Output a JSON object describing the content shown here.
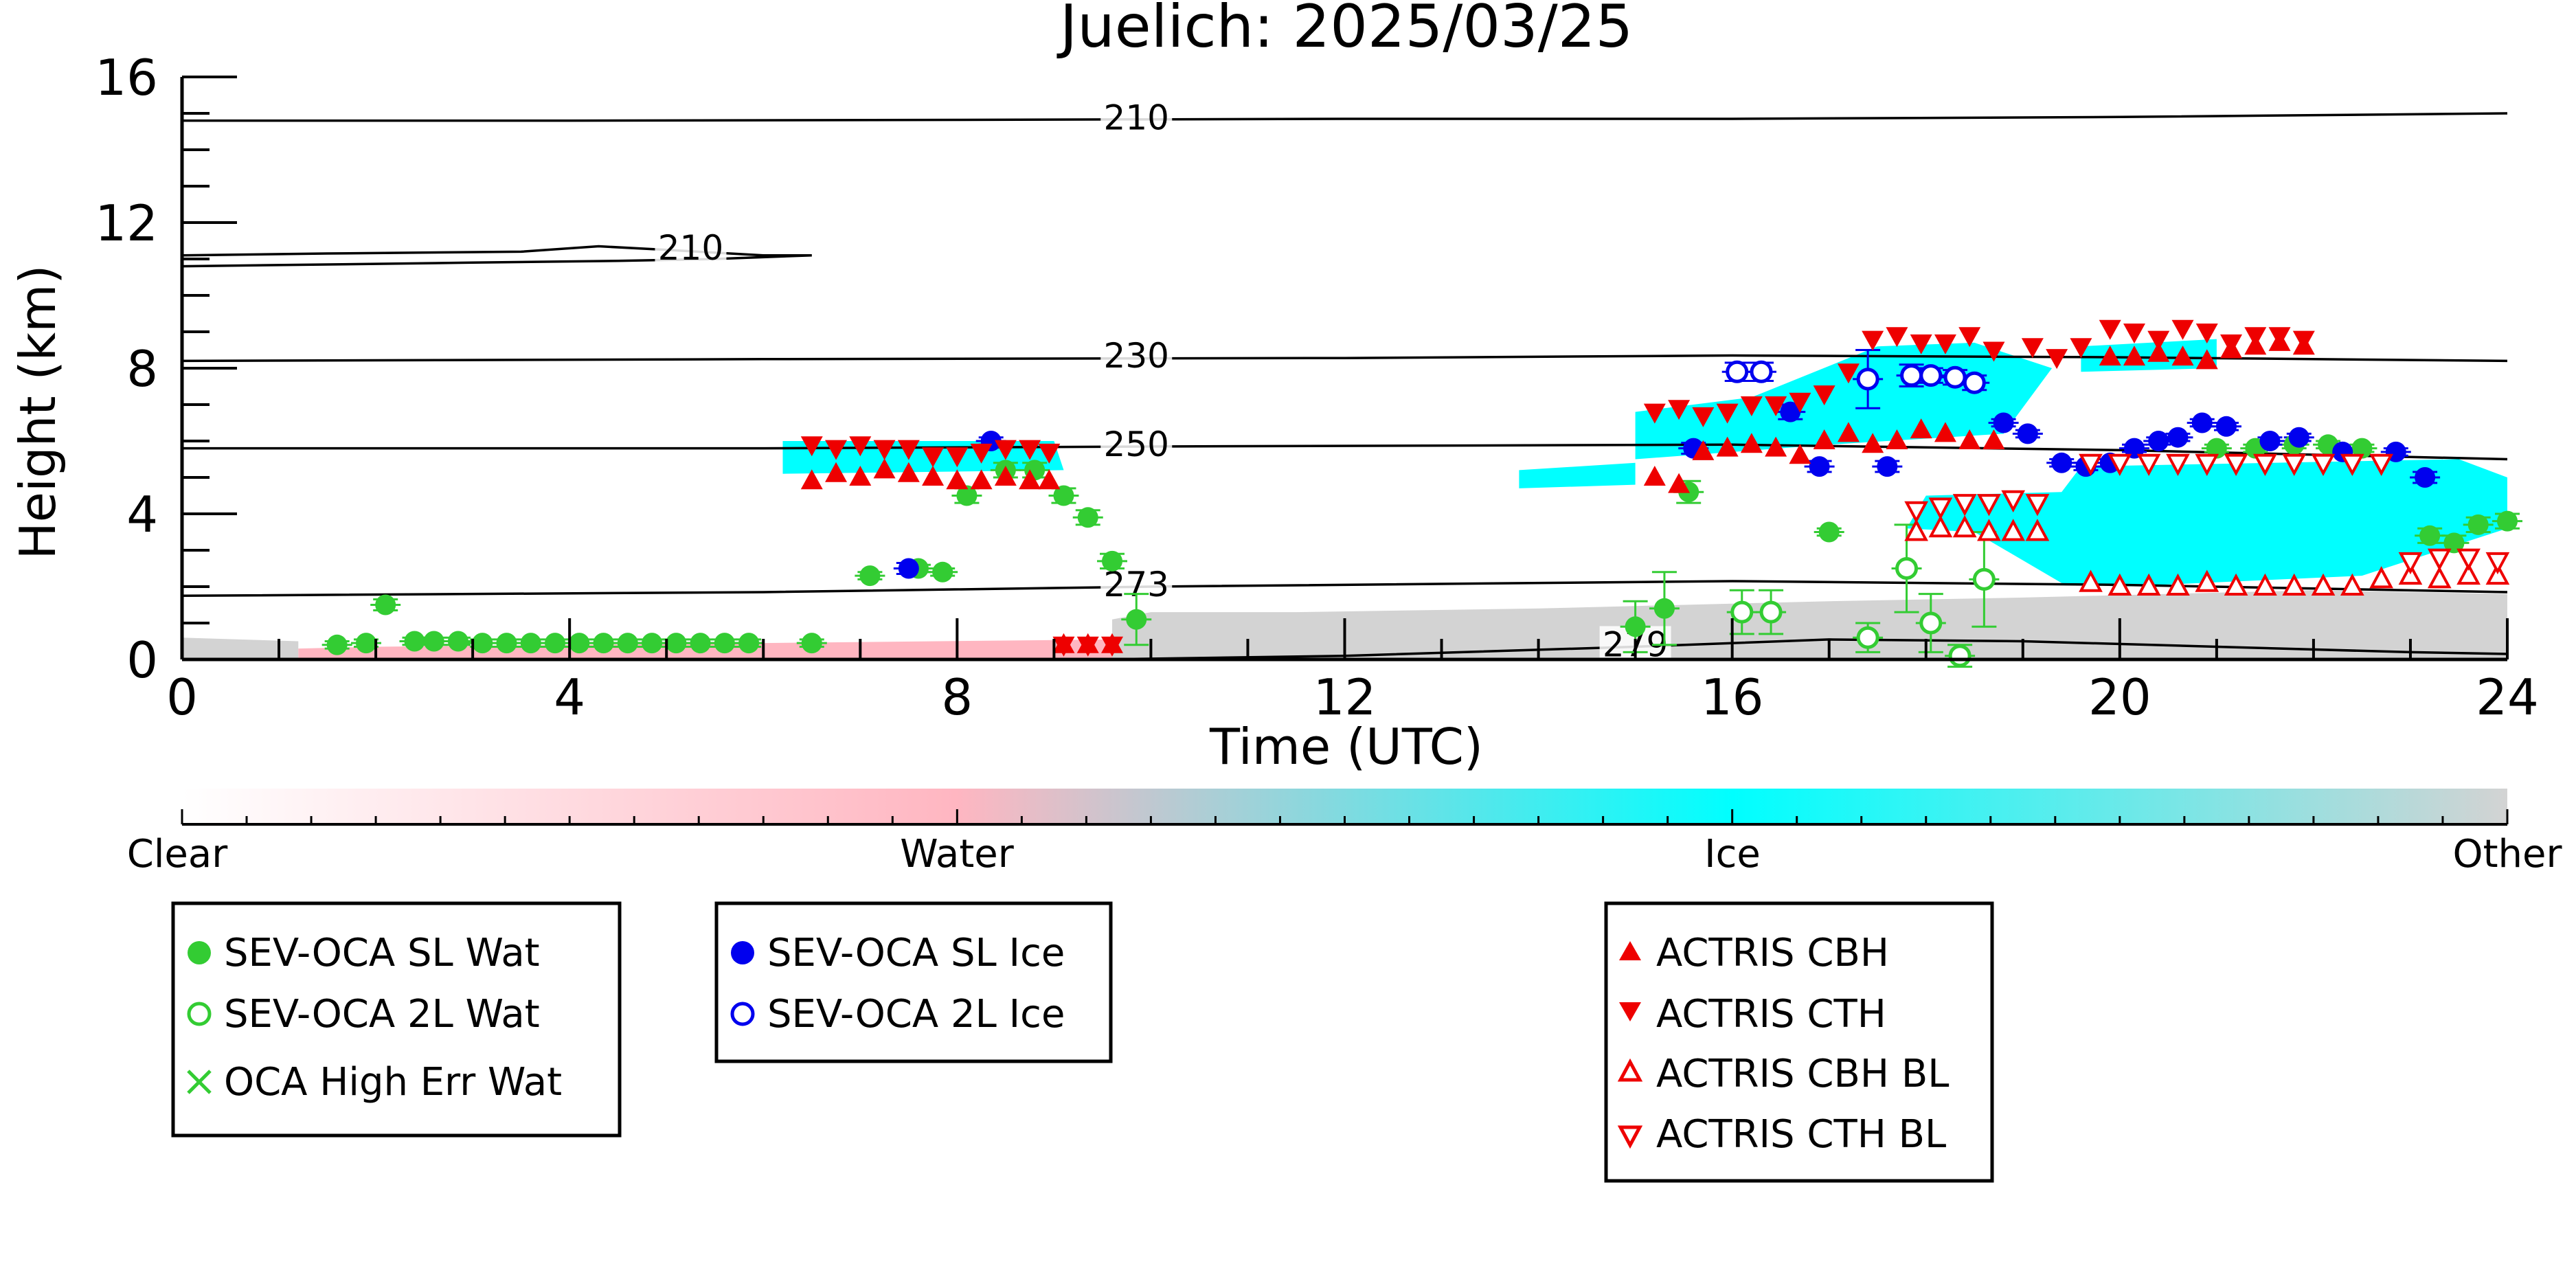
{
  "chart_data": {
    "type": "scatter",
    "title": "Juelich: 2025/03/25",
    "xlabel": "Time (UTC)",
    "ylabel": "Height (km)",
    "xlim": [
      0,
      24
    ],
    "ylim": [
      0,
      16
    ],
    "xticks": [
      0,
      4,
      8,
      12,
      16,
      20,
      24
    ],
    "yticks": [
      0,
      4,
      8,
      12,
      16
    ],
    "contours": [
      {
        "label": "210",
        "label_x": 9.85,
        "points": [
          [
            0,
            14.8
          ],
          [
            4,
            14.8
          ],
          [
            8,
            14.82
          ],
          [
            12,
            14.85
          ],
          [
            16,
            14.85
          ],
          [
            20,
            14.9
          ],
          [
            24,
            15.0
          ]
        ]
      },
      {
        "label": "210",
        "label_x": 5.25,
        "points": [
          [
            0,
            11.1
          ],
          [
            1.5,
            11.15
          ],
          [
            3.5,
            11.2
          ],
          [
            4.3,
            11.35
          ],
          [
            5.0,
            11.25
          ],
          [
            6.0,
            11.1
          ],
          [
            6.5,
            11.1
          ],
          [
            5.5,
            11.0
          ],
          [
            4.5,
            10.95
          ],
          [
            3.0,
            10.9
          ],
          [
            1.5,
            10.85
          ],
          [
            0,
            10.8
          ]
        ]
      },
      {
        "label": "230",
        "label_x": 9.85,
        "points": [
          [
            0,
            8.2
          ],
          [
            6,
            8.25
          ],
          [
            12,
            8.28
          ],
          [
            16,
            8.35
          ],
          [
            20,
            8.3
          ],
          [
            24,
            8.2
          ]
        ]
      },
      {
        "label": "250",
        "label_x": 9.85,
        "points": [
          [
            0,
            5.8
          ],
          [
            6,
            5.8
          ],
          [
            10,
            5.85
          ],
          [
            16,
            5.9
          ],
          [
            20,
            5.75
          ],
          [
            24,
            5.5
          ]
        ]
      },
      {
        "label": "273",
        "label_x": 9.85,
        "points": [
          [
            0,
            1.75
          ],
          [
            6,
            1.85
          ],
          [
            10,
            2.0
          ],
          [
            16,
            2.15
          ],
          [
            20,
            2.05
          ],
          [
            24,
            1.85
          ]
        ]
      },
      {
        "label": "279",
        "label_x": 15.0,
        "points": [
          [
            9.5,
            0.0
          ],
          [
            12,
            0.1
          ],
          [
            15,
            0.35
          ],
          [
            17,
            0.55
          ],
          [
            19,
            0.5
          ],
          [
            21,
            0.35
          ],
          [
            23,
            0.2
          ],
          [
            24,
            0.15
          ]
        ]
      }
    ],
    "classification_regions": [
      {
        "class": "Ice",
        "polygon": [
          [
            6.2,
            6.0
          ],
          [
            9.0,
            6.0
          ],
          [
            9.1,
            5.2
          ],
          [
            6.2,
            5.1
          ]
        ]
      },
      {
        "class": "Ice",
        "polygon": [
          [
            15.0,
            6.8
          ],
          [
            16.2,
            7.2
          ],
          [
            17.5,
            8.6
          ],
          [
            18.5,
            8.7
          ],
          [
            19.3,
            8.0
          ],
          [
            18.8,
            6.2
          ],
          [
            17.0,
            5.9
          ],
          [
            15.0,
            5.5
          ]
        ]
      },
      {
        "class": "Ice",
        "polygon": [
          [
            19.6,
            8.6
          ],
          [
            21.0,
            8.8
          ],
          [
            21.0,
            8.0
          ],
          [
            19.6,
            7.9
          ]
        ]
      },
      {
        "class": "Ice",
        "polygon": [
          [
            18.0,
            4.5
          ],
          [
            19.4,
            4.6
          ],
          [
            19.6,
            5.3
          ],
          [
            23.5,
            5.5
          ],
          [
            24.0,
            5.0
          ],
          [
            24.0,
            3.6
          ],
          [
            22.5,
            2.3
          ],
          [
            20.0,
            2.0
          ],
          [
            19.4,
            2.1
          ],
          [
            18.5,
            3.5
          ],
          [
            17.8,
            3.6
          ]
        ]
      },
      {
        "class": "Ice",
        "polygon": [
          [
            13.8,
            5.2
          ],
          [
            15.0,
            5.4
          ],
          [
            15.0,
            4.8
          ],
          [
            13.8,
            4.7
          ]
        ]
      },
      {
        "class": "Other",
        "polygon": [
          [
            9.6,
            0.0
          ],
          [
            24.0,
            0.0
          ],
          [
            24.0,
            1.8
          ],
          [
            22.0,
            1.9
          ],
          [
            19.0,
            1.7
          ],
          [
            17.0,
            1.6
          ],
          [
            14.0,
            1.4
          ],
          [
            11.5,
            1.3
          ],
          [
            10.0,
            1.3
          ],
          [
            9.6,
            1.1
          ]
        ]
      },
      {
        "class": "Other",
        "polygon": [
          [
            0.0,
            0.0
          ],
          [
            1.2,
            0.0
          ],
          [
            1.2,
            0.5
          ],
          [
            0.0,
            0.6
          ]
        ]
      },
      {
        "class": "Water",
        "polygon": [
          [
            1.2,
            0.0
          ],
          [
            9.6,
            0.0
          ],
          [
            9.6,
            0.55
          ],
          [
            6.0,
            0.45
          ],
          [
            2.0,
            0.35
          ],
          [
            1.2,
            0.3
          ]
        ]
      }
    ],
    "series": [
      {
        "name": "SEV-OCA SL Wat",
        "marker": "filled-circle",
        "color": "#33cc33",
        "x": [
          1.6,
          1.9,
          2.1,
          2.4,
          2.6,
          2.85,
          3.1,
          3.35,
          3.6,
          3.85,
          4.1,
          4.35,
          4.6,
          4.85,
          5.1,
          5.35,
          5.6,
          5.85,
          6.5,
          7.1,
          7.6,
          7.85,
          8.1,
          8.5,
          8.8,
          9.1,
          9.35,
          9.6,
          9.85,
          15.0,
          15.3,
          15.55,
          17.0,
          21.0,
          21.4,
          21.8,
          22.15,
          22.5,
          23.2,
          23.45,
          23.7,
          24.0
        ],
        "y": [
          0.4,
          0.45,
          1.5,
          0.5,
          0.5,
          0.5,
          0.45,
          0.45,
          0.45,
          0.45,
          0.45,
          0.45,
          0.45,
          0.45,
          0.45,
          0.45,
          0.45,
          0.45,
          0.45,
          2.3,
          2.5,
          2.4,
          4.5,
          5.2,
          5.2,
          4.5,
          3.9,
          2.7,
          1.1,
          0.9,
          1.4,
          4.6,
          3.5,
          5.8,
          5.8,
          5.9,
          5.9,
          5.8,
          3.4,
          3.2,
          3.7,
          3.8
        ],
        "err": [
          0.1,
          0.1,
          0.15,
          0.1,
          0.1,
          0.1,
          0.1,
          0.1,
          0.1,
          0.1,
          0.1,
          0.1,
          0.1,
          0.1,
          0.1,
          0.1,
          0.1,
          0.1,
          0.1,
          0.1,
          0.1,
          0.1,
          0.2,
          0.2,
          0.2,
          0.2,
          0.2,
          0.2,
          0.7,
          0.7,
          1.0,
          0.3,
          0.1,
          0.1,
          0.1,
          0.1,
          0.1,
          0.1,
          0.2,
          0.2,
          0.2,
          0.2
        ]
      },
      {
        "name": "SEV-OCA 2L Wat",
        "marker": "open-circle",
        "color": "#33cc33",
        "x": [
          16.1,
          16.4,
          17.4,
          17.8,
          18.05,
          18.35,
          18.6
        ],
        "y": [
          1.3,
          1.3,
          0.6,
          2.5,
          1.0,
          0.1,
          2.2
        ],
        "err": [
          0.6,
          0.6,
          0.4,
          1.2,
          0.8,
          0.3,
          1.3
        ]
      },
      {
        "name": "OCA High Err Wat",
        "marker": "cross",
        "color": "#33cc33",
        "x": [],
        "y": []
      },
      {
        "name": "SEV-OCA SL Ice",
        "marker": "filled-circle",
        "color": "#0000ee",
        "x": [
          7.5,
          8.35,
          15.6,
          16.6,
          16.9,
          17.6,
          18.8,
          19.05,
          19.4,
          19.65,
          19.9,
          20.15,
          20.4,
          20.6,
          20.85,
          21.1,
          21.55,
          21.85,
          22.3,
          22.85,
          23.15
        ],
        "y": [
          2.5,
          6.0,
          5.8,
          6.8,
          5.3,
          5.3,
          6.5,
          6.2,
          5.4,
          5.3,
          5.4,
          5.8,
          6.0,
          6.1,
          6.5,
          6.4,
          6.0,
          6.1,
          5.7,
          5.7,
          5.0
        ],
        "err": [
          0.15,
          0.1,
          0.15,
          0.2,
          0.15,
          0.15,
          0.1,
          0.1,
          0.1,
          0.1,
          0.1,
          0.1,
          0.1,
          0.1,
          0.1,
          0.1,
          0.1,
          0.1,
          0.1,
          0.1,
          0.15
        ]
      },
      {
        "name": "SEV-OCA 2L Ice",
        "marker": "open-circle",
        "color": "#0000ee",
        "x": [
          16.05,
          16.3,
          17.4,
          17.85,
          18.05,
          18.3,
          18.5
        ],
        "y": [
          7.9,
          7.9,
          7.7,
          7.8,
          7.8,
          7.75,
          7.6
        ],
        "err": [
          0.25,
          0.25,
          0.8,
          0.3,
          0.2,
          0.2,
          0.2
        ]
      },
      {
        "name": "ACTRIS CBH",
        "marker": "triangle-up-filled",
        "color": "#ee0000",
        "x": [
          6.5,
          6.75,
          7.0,
          7.25,
          7.5,
          7.75,
          8.0,
          8.25,
          8.5,
          8.75,
          8.95,
          9.1,
          9.35,
          9.6,
          15.2,
          15.45,
          15.7,
          15.95,
          16.2,
          16.45,
          16.7,
          16.95,
          17.2,
          17.45,
          17.7,
          17.95,
          18.2,
          18.45,
          18.7,
          19.9,
          20.15,
          20.4,
          20.65,
          20.9,
          21.15,
          21.4,
          21.65,
          21.9
        ],
        "y": [
          4.9,
          5.1,
          5.0,
          5.2,
          5.1,
          5.0,
          4.9,
          4.9,
          5.0,
          4.9,
          4.9,
          0.4,
          0.4,
          0.4,
          5.0,
          4.8,
          5.7,
          5.8,
          5.9,
          5.8,
          5.6,
          6.0,
          6.2,
          5.9,
          6.0,
          6.3,
          6.2,
          6.0,
          6.0,
          8.3,
          8.3,
          8.4,
          8.3,
          8.2,
          8.5,
          8.6,
          8.7,
          8.6
        ],
        "err": []
      },
      {
        "name": "ACTRIS CTH",
        "marker": "triangle-down-filled",
        "color": "#ee0000",
        "x": [
          6.5,
          6.75,
          7.0,
          7.25,
          7.5,
          7.75,
          8.0,
          8.25,
          8.5,
          8.75,
          8.95,
          9.1,
          9.35,
          9.6,
          15.2,
          15.45,
          15.7,
          15.95,
          16.2,
          16.45,
          16.7,
          16.95,
          17.2,
          17.45,
          17.7,
          17.95,
          18.2,
          18.45,
          18.7,
          19.1,
          19.35,
          19.6,
          19.9,
          20.15,
          20.4,
          20.65,
          20.9,
          21.15,
          21.4,
          21.65,
          21.9
        ],
        "y": [
          5.9,
          5.8,
          5.9,
          5.8,
          5.8,
          5.6,
          5.6,
          5.7,
          5.8,
          5.8,
          5.7,
          0.4,
          0.4,
          0.4,
          6.8,
          6.9,
          6.7,
          6.8,
          7.0,
          7.0,
          7.1,
          7.3,
          7.9,
          8.8,
          8.9,
          8.7,
          8.7,
          8.9,
          8.5,
          8.6,
          8.3,
          8.6,
          9.1,
          9.0,
          8.8,
          9.1,
          9.0,
          8.7,
          8.9,
          8.9,
          8.8
        ],
        "err": []
      },
      {
        "name": "ACTRIS CBH BL",
        "marker": "triangle-up-open",
        "color": "#ee0000",
        "x": [
          17.9,
          18.15,
          18.4,
          18.65,
          18.9,
          19.15,
          19.7,
          20.0,
          20.3,
          20.6,
          20.9,
          21.2,
          21.5,
          21.8,
          22.1,
          22.4,
          22.7,
          23.0,
          23.3,
          23.6,
          23.9
        ],
        "y": [
          3.5,
          3.6,
          3.6,
          3.5,
          3.5,
          3.5,
          2.1,
          2.0,
          2.0,
          2.0,
          2.1,
          2.0,
          2.0,
          2.0,
          2.0,
          2.0,
          2.2,
          2.3,
          2.2,
          2.3,
          2.3
        ],
        "err": []
      },
      {
        "name": "ACTRIS CTH BL",
        "marker": "triangle-down-open",
        "color": "#ee0000",
        "x": [
          17.9,
          18.15,
          18.4,
          18.65,
          18.9,
          19.15,
          19.7,
          20.0,
          20.3,
          20.6,
          20.9,
          21.2,
          21.5,
          21.8,
          22.1,
          22.4,
          22.7,
          23.0,
          23.3,
          23.6,
          23.9
        ],
        "y": [
          4.1,
          4.2,
          4.3,
          4.3,
          4.4,
          4.3,
          5.4,
          5.4,
          5.4,
          5.4,
          5.4,
          5.4,
          5.4,
          5.4,
          5.4,
          5.4,
          5.4,
          2.7,
          2.8,
          2.8,
          2.7
        ],
        "err": []
      }
    ],
    "colorbar": {
      "labels": [
        "Clear",
        "Water",
        "Ice",
        "Other"
      ],
      "colors": [
        "#ffffff",
        "#ffb6c1",
        "#00ffff",
        "#d3d3d3"
      ]
    },
    "legends": [
      {
        "entries": [
          "SEV-OCA SL Wat",
          "SEV-OCA 2L Wat",
          "OCA High Err Wat"
        ]
      },
      {
        "entries": [
          "SEV-OCA SL Ice",
          "SEV-OCA 2L Ice"
        ]
      },
      {
        "entries": [
          "ACTRIS CBH",
          "ACTRIS CTH",
          "ACTRIS CBH BL",
          "ACTRIS CTH BL"
        ]
      }
    ],
    "class_colors": {
      "Clear": "#ffffff",
      "Water": "#ffb6c1",
      "Ice": "#00ffff",
      "Other": "#d3d3d3"
    }
  }
}
